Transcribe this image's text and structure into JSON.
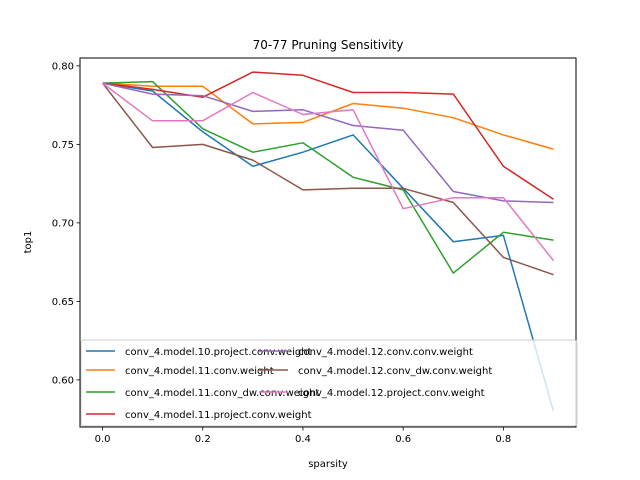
{
  "chart_data": {
    "type": "line",
    "title": "70-77 Pruning Sensitivity",
    "xlabel": "sparsity",
    "ylabel": "top1",
    "xlim": [
      -0.045,
      0.945
    ],
    "ylim": [
      0.57,
      0.805
    ],
    "x_ticks": [
      "0.0",
      "0.2",
      "0.4",
      "0.6",
      "0.8"
    ],
    "y_ticks": [
      "0.60",
      "0.65",
      "0.70",
      "0.75",
      "0.80"
    ],
    "grid": false,
    "legend_position": "lower-left",
    "x": [
      0.0,
      0.1,
      0.2,
      0.3,
      0.4,
      0.5,
      0.6,
      0.7,
      0.8,
      0.9
    ],
    "series": [
      {
        "name": "conv_4.model.10.project.conv.weight",
        "color": "#1f77b4",
        "values": [
          0.789,
          0.784,
          0.758,
          0.736,
          0.745,
          0.756,
          0.722,
          0.688,
          0.692,
          0.58
        ]
      },
      {
        "name": "conv_4.model.11.conv.weight",
        "color": "#ff7f0e",
        "values": [
          0.789,
          0.787,
          0.787,
          0.763,
          0.764,
          0.776,
          0.773,
          0.767,
          0.756,
          0.747
        ]
      },
      {
        "name": "conv_4.model.11.conv_dw.conv.weight",
        "color": "#2ca02c",
        "values": [
          0.789,
          0.79,
          0.76,
          0.745,
          0.751,
          0.729,
          0.721,
          0.668,
          0.694,
          0.689
        ]
      },
      {
        "name": "conv_4.model.11.project.conv.weight",
        "color": "#d62728",
        "values": [
          0.789,
          0.785,
          0.78,
          0.796,
          0.794,
          0.783,
          0.783,
          0.782,
          0.736,
          0.715
        ]
      },
      {
        "name": "conv_4.model.12.conv.conv.weight",
        "color": "#9467bd",
        "values": [
          0.789,
          0.782,
          0.781,
          0.771,
          0.772,
          0.762,
          0.759,
          0.72,
          0.714,
          0.713
        ]
      },
      {
        "name": "conv_4.model.12.conv_dw.conv.weight",
        "color": "#8c564b",
        "values": [
          0.789,
          0.748,
          0.75,
          0.74,
          0.721,
          0.722,
          0.722,
          0.713,
          0.678,
          0.667
        ]
      },
      {
        "name": "conv_4.model.12.project.conv.weight",
        "color": "#e377c2",
        "values": [
          0.789,
          0.765,
          0.765,
          0.783,
          0.769,
          0.772,
          0.709,
          0.716,
          0.716,
          0.676
        ]
      }
    ]
  }
}
